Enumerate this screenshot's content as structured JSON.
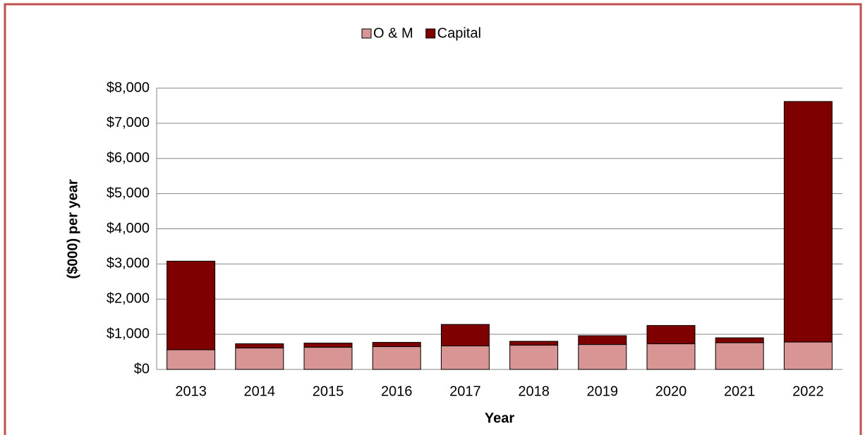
{
  "chart_data": {
    "type": "stacked_bar",
    "categories": [
      "2013",
      "2014",
      "2015",
      "2016",
      "2017",
      "2018",
      "2019",
      "2020",
      "2021",
      "2022"
    ],
    "series": [
      {
        "name": "O & M",
        "color": "#d99594",
        "values": [
          560,
          610,
          630,
          650,
          670,
          690,
          710,
          730,
          760,
          780
        ]
      },
      {
        "name": "Capital",
        "color": "#7f0000",
        "values": [
          2520,
          120,
          120,
          120,
          610,
          110,
          250,
          520,
          140,
          6840
        ]
      }
    ],
    "x_label": "Year",
    "y_label": "($000) per year",
    "ylim": [
      0,
      8000
    ],
    "yticks": [
      {
        "value": 0,
        "label": "$0"
      },
      {
        "value": 1000,
        "label": "$1,000"
      },
      {
        "value": 2000,
        "label": "$2,000"
      },
      {
        "value": 3000,
        "label": "$3,000"
      },
      {
        "value": 4000,
        "label": "$4,000"
      },
      {
        "value": 5000,
        "label": "$5,000"
      },
      {
        "value": 6000,
        "label": "$6,000"
      },
      {
        "value": 7000,
        "label": "$7,000"
      },
      {
        "value": 8000,
        "label": "$8,000"
      }
    ],
    "grid": true,
    "legend": "top"
  }
}
